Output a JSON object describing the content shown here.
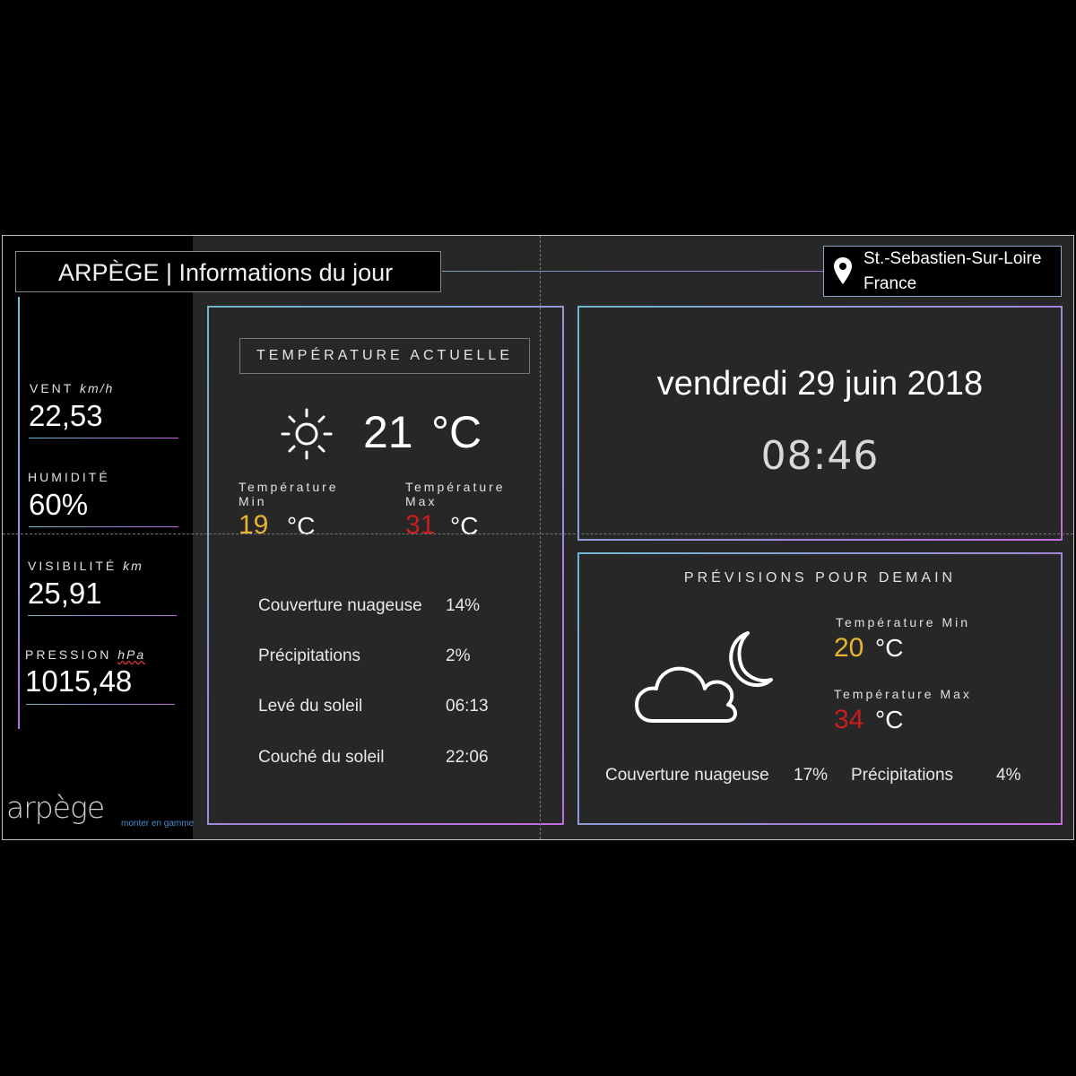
{
  "header": {
    "title": "ARPÈGE | Informations du jour",
    "location_city": "St.-Sebastien-Sur-Loire",
    "location_country": "France"
  },
  "sidebar": {
    "metrics": [
      {
        "label": "VENT",
        "unit": "km/h",
        "value": "22,53"
      },
      {
        "label": "HUMIDITÉ",
        "unit": "",
        "value": "60%"
      },
      {
        "label": "VISIBILITÉ",
        "unit": "km",
        "value": "25,91"
      },
      {
        "label": "PRESSION",
        "unit": "hPa",
        "value": "1015,48"
      }
    ],
    "logo_text": "arpège",
    "logo_tagline": "monter en gamme"
  },
  "current": {
    "header": "TEMPÉRATURE ACTUELLE",
    "icon": "sun-icon",
    "temperature": "21",
    "unit": "°C",
    "min_label": "Température Min",
    "min_value": "19",
    "max_label": "Température Max",
    "max_value": "31",
    "rows": [
      {
        "label": "Couverture nuageuse",
        "value": "14%"
      },
      {
        "label": "Précipitations",
        "value": "2%"
      },
      {
        "label": "Levé du soleil",
        "value": "06:13"
      },
      {
        "label": "Couché du soleil",
        "value": "22:06"
      }
    ]
  },
  "datetime": {
    "date": "vendredi 29 juin 2018",
    "time": "08:46"
  },
  "forecast": {
    "title": "PRÉVISIONS POUR DEMAIN",
    "icon": "cloud-moon-icon",
    "min_label": "Température Min",
    "min_value": "20",
    "max_label": "Température Max",
    "max_value": "34",
    "unit": "°C",
    "cloud_label": "Couverture nuageuse",
    "cloud_value": "17%",
    "precip_label": "Précipitations",
    "precip_value": "4%"
  },
  "colors": {
    "min_temp": "#e8b430",
    "max_temp": "#c81e1e",
    "accent_start": "#6fb7d0",
    "accent_end": "#c16be3"
  }
}
